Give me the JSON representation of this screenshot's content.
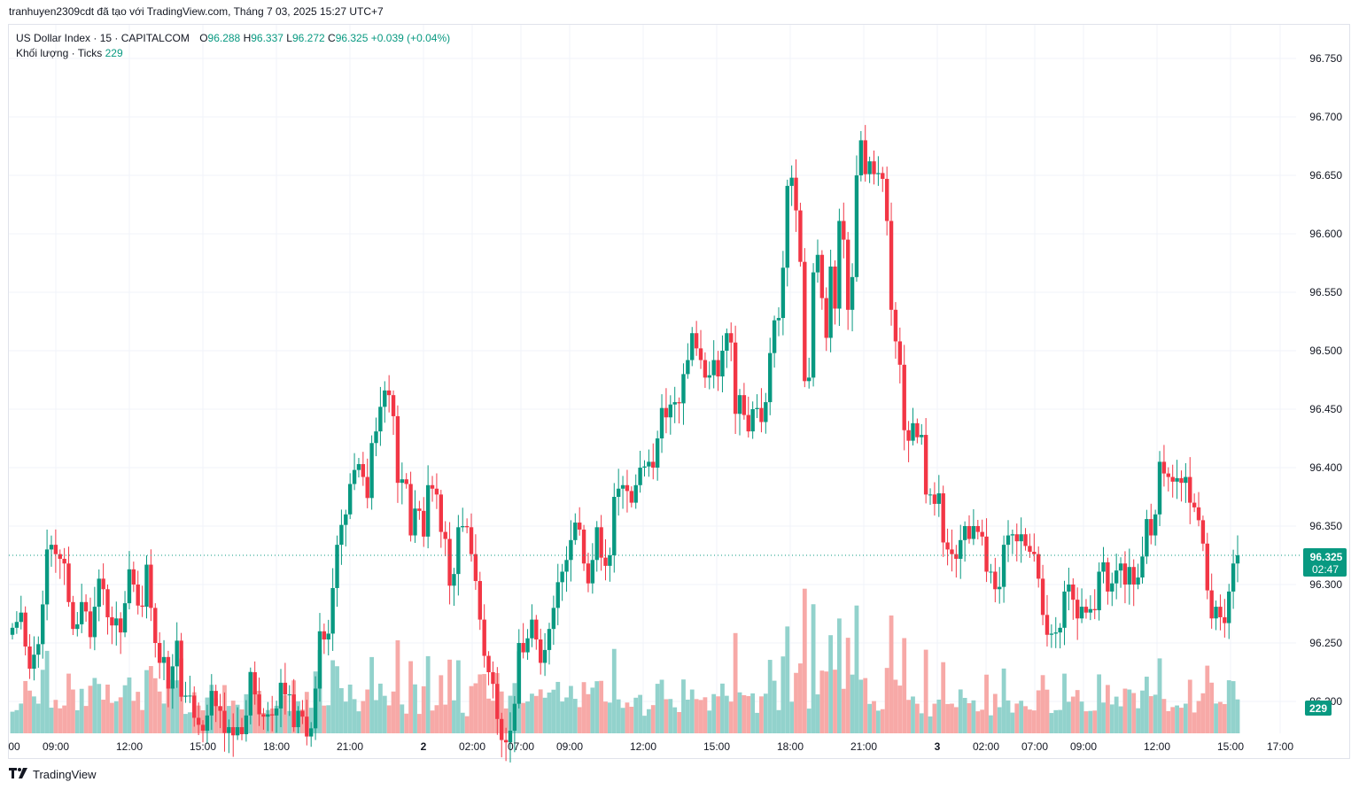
{
  "header": {
    "caption": "tranhuyen2309cdt đã tạo với TradingView.com, Tháng 7 03, 2025 15:27 UTC+7"
  },
  "legend": {
    "symbol": "US Dollar Index · 15 · CAPITALCOM",
    "o_label": "O",
    "o_value": "96.288",
    "h_label": "H",
    "h_value": "96.337",
    "l_label": "L",
    "l_value": "96.272",
    "c_label": "C",
    "c_value": "96.325",
    "change": "+0.039 (+0.04%)",
    "volume_label": "Khối lượng · Ticks",
    "volume_value": "229"
  },
  "price_badge": {
    "price": "96.325",
    "countdown": "02:47"
  },
  "volume_badge": "229",
  "footer": {
    "brand": "TradingView"
  },
  "colors": {
    "up": "#089981",
    "down": "#f23645",
    "up_vol": "#92d2cc",
    "down_vol": "#f7a9a7",
    "grid": "#f0f3fa",
    "text": "#131722"
  },
  "chart_data": {
    "type": "candlestick",
    "title": "US Dollar Index · 15 · CAPITALCOM",
    "ylim": [
      96.195,
      96.775
    ],
    "y_ticks": [
      "96.750",
      "96.700",
      "96.650",
      "96.600",
      "96.550",
      "96.500",
      "96.450",
      "96.400",
      "96.350",
      "96.300",
      "96.250",
      "96.200"
    ],
    "x_ticks": [
      "00",
      "09:00",
      "12:00",
      "15:00",
      "18:00",
      "21:00",
      "2",
      "02:00",
      "07:00",
      "09:00",
      "12:00",
      "15:00",
      "18:00",
      "21:00",
      "3",
      "02:00",
      "07:00",
      "09:00",
      "12:00",
      "15:00",
      "17:00"
    ],
    "last_price": 96.325,
    "close": [
      96.263,
      96.268,
      96.276,
      96.247,
      96.228,
      96.24,
      96.249,
      96.283,
      96.33,
      96.334,
      96.326,
      96.322,
      96.318,
      96.285,
      96.262,
      96.266,
      96.285,
      96.277,
      96.255,
      96.281,
      96.305,
      96.296,
      96.272,
      96.265,
      96.271,
      96.259,
      96.284,
      96.313,
      96.3,
      96.282,
      96.281,
      96.317,
      96.28,
      96.25,
      96.233,
      96.238,
      96.211,
      96.23,
      96.252,
      96.204,
      96.205,
      96.205,
      96.186,
      96.18,
      96.175,
      96.188,
      96.209,
      96.196,
      96.192,
      96.173,
      96.178,
      96.171,
      96.178,
      96.172,
      96.188,
      96.225,
      96.206,
      96.189,
      96.187,
      96.189,
      96.188,
      96.194,
      96.216,
      96.206,
      96.206,
      96.178,
      96.192,
      96.187,
      96.17,
      96.177,
      96.211,
      96.26,
      96.253,
      96.258,
      96.297,
      96.334,
      96.351,
      96.36,
      96.386,
      96.398,
      96.403,
      96.392,
      96.374,
      96.421,
      96.431,
      96.452,
      96.466,
      96.462,
      96.444,
      96.387,
      96.39,
      96.386,
      96.342,
      96.365,
      96.363,
      96.341,
      96.385,
      96.382,
      96.377,
      96.345,
      96.339,
      96.299,
      96.309,
      96.349,
      96.35,
      96.349,
      96.326,
      96.303,
      96.27,
      96.239,
      96.225,
      96.215,
      96.185,
      96.167,
      96.165,
      96.175,
      96.198,
      96.25,
      96.242,
      96.254,
      96.27,
      96.253,
      96.233,
      96.244,
      96.262,
      96.28,
      96.302,
      96.311,
      96.321,
      96.338,
      96.353,
      96.347,
      96.318,
      96.301,
      96.321,
      96.349,
      96.323,
      96.316,
      96.325,
      96.375,
      96.382,
      96.385,
      96.38,
      96.37,
      96.385,
      96.4,
      96.401,
      96.405,
      96.4,
      96.425,
      96.451,
      96.443,
      96.454,
      96.456,
      96.455,
      96.48,
      96.492,
      96.515,
      96.502,
      96.492,
      96.477,
      96.479,
      96.492,
      96.478,
      96.5,
      96.515,
      96.507,
      96.446,
      96.462,
      96.445,
      96.431,
      96.45,
      96.451,
      96.439,
      96.456,
      96.498,
      96.526,
      96.528,
      96.571,
      96.641,
      96.648,
      96.62,
      96.576,
      96.474,
      96.477,
      96.567,
      96.582,
      96.545,
      96.511,
      96.572,
      96.536,
      96.611,
      96.595,
      96.535,
      96.563,
      96.65,
      96.68,
      96.651,
      96.662,
      96.651,
      96.652,
      96.647,
      96.611,
      96.535,
      96.508,
      96.488,
      96.432,
      96.423,
      96.438,
      96.426,
      96.428,
      96.377,
      96.377,
      96.369,
      96.378,
      96.336,
      96.33,
      96.326,
      96.322,
      96.338,
      96.35,
      96.339,
      96.35,
      96.345,
      96.341,
      96.311,
      96.311,
      96.296,
      96.298,
      96.334,
      96.342,
      96.343,
      96.337,
      96.343,
      96.333,
      96.328,
      96.326,
      96.305,
      96.274,
      96.257,
      96.258,
      96.259,
      96.263,
      96.294,
      96.3,
      96.287,
      96.271,
      96.281,
      96.276,
      96.279,
      96.278,
      96.311,
      96.319,
      96.294,
      96.301,
      96.312,
      96.318,
      96.3,
      96.315,
      96.3,
      96.306,
      96.324,
      96.356,
      96.342,
      96.36,
      96.405,
      96.395,
      96.392,
      96.388,
      96.391,
      96.387,
      96.392,
      96.37,
      96.366,
      96.355,
      96.335,
      96.295,
      96.271,
      96.281,
      96.272,
      96.267,
      96.294,
      96.318,
      96.325
    ],
    "y_label": "",
    "x_label": ""
  }
}
